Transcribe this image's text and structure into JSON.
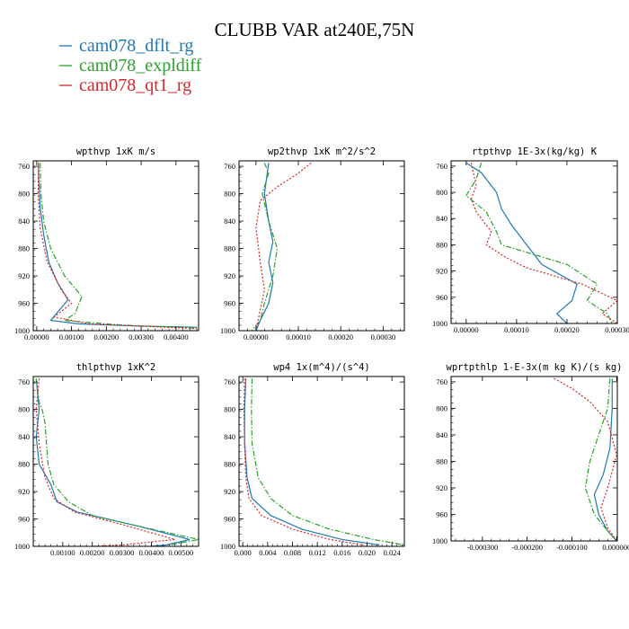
{
  "figure": {
    "title": "CLUBB VAR at240E,75N"
  },
  "colors": {
    "cam078_dflt_rg": "#1f77b4",
    "cam078_expldiff": "#2ca02c",
    "cam078_qt1_rg": "#d62728"
  },
  "legend": [
    {
      "name": "cam078_dflt_rg",
      "dash": "solid"
    },
    {
      "name": "cam078_expldiff",
      "dash": "dashdot"
    },
    {
      "name": "cam078_qt1_rg",
      "dash": "dotted"
    }
  ],
  "chart_data": [
    {
      "type": "line",
      "title": "wpthvp   1xK m/s",
      "xlim": [
        -0.0001,
        0.00465
      ],
      "ylim": [
        1000,
        752
      ],
      "y_inverted": true,
      "xticks": [
        0,
        0.001,
        0.002,
        0.003,
        0.004
      ],
      "xtick_labels": [
        "0.00000",
        "0.00100",
        "0.00200",
        "0.00300",
        "0.00400"
      ],
      "yticks": [
        760,
        800,
        840,
        880,
        920,
        960,
        1000
      ],
      "ytick_labels": [
        "760",
        "800",
        "840",
        "880",
        "920",
        "960",
        "1000"
      ],
      "series": [
        {
          "name": "cam078_dflt_rg",
          "points": [
            [
              5e-05,
              755
            ],
            [
              6e-05,
              780
            ],
            [
              0.0001,
              820
            ],
            [
              0.0002,
              860
            ],
            [
              0.00035,
              900
            ],
            [
              0.0006,
              930
            ],
            [
              0.0009,
              955
            ],
            [
              0.0004,
              985
            ],
            [
              0.0012,
              990
            ],
            [
              0.0028,
              993
            ],
            [
              0.0046,
              995
            ]
          ]
        },
        {
          "name": "cam078_expldiff",
          "points": [
            [
              0.0001,
              755
            ],
            [
              0.00012,
              800
            ],
            [
              0.0002,
              840
            ],
            [
              0.0004,
              880
            ],
            [
              0.0008,
              920
            ],
            [
              0.0013,
              950
            ],
            [
              0.0011,
              975
            ],
            [
              0.0008,
              985
            ],
            [
              0.0025,
              992
            ],
            [
              0.0046,
              996
            ]
          ]
        },
        {
          "name": "cam078_qt1_rg",
          "points": [
            [
              5e-05,
              755
            ],
            [
              4e-05,
              800
            ],
            [
              0.0001,
              850
            ],
            [
              0.0003,
              900
            ],
            [
              0.0007,
              940
            ],
            [
              0.001,
              960
            ],
            [
              0.0005,
              980
            ],
            [
              0.0015,
              990
            ],
            [
              0.0046,
              997
            ]
          ]
        }
      ]
    },
    {
      "type": "line",
      "title": "wp2thvp   1xK m^2/s^2",
      "xlim": [
        -4e-05,
        0.00035
      ],
      "ylim": [
        1000,
        752
      ],
      "y_inverted": true,
      "xticks": [
        0,
        0.0001,
        0.0002,
        0.0003
      ],
      "xtick_labels": [
        "0.00000",
        "0.00010",
        "0.00020",
        "0.00030"
      ],
      "yticks": [
        760,
        800,
        840,
        880,
        920,
        960,
        1000
      ],
      "ytick_labels": [
        "760",
        "800",
        "840",
        "880",
        "920",
        "960",
        "1000"
      ],
      "series": [
        {
          "name": "cam078_dflt_rg",
          "points": [
            [
              3e-05,
              755
            ],
            [
              2e-05,
              800
            ],
            [
              3e-05,
              840
            ],
            [
              4e-05,
              870
            ],
            [
              3e-05,
              900
            ],
            [
              4e-05,
              930
            ],
            [
              3e-05,
              960
            ],
            [
              1e-05,
              985
            ],
            [
              0,
              1000
            ]
          ]
        },
        {
          "name": "cam078_expldiff",
          "points": [
            [
              2e-05,
              755
            ],
            [
              3e-05,
              770
            ],
            [
              1.5e-05,
              800
            ],
            [
              3e-05,
              840
            ],
            [
              5e-05,
              880
            ],
            [
              4e-05,
              920
            ],
            [
              2e-05,
              960
            ],
            [
              1e-05,
              985
            ],
            [
              -1e-05,
              1000
            ]
          ]
        },
        {
          "name": "cam078_qt1_rg",
          "points": [
            [
              0.00013,
              755
            ],
            [
              0.0001,
              770
            ],
            [
              5e-05,
              790
            ],
            [
              1e-05,
              810
            ],
            [
              0,
              850
            ],
            [
              1e-05,
              900
            ],
            [
              2e-05,
              940
            ],
            [
              1e-05,
              970
            ],
            [
              0,
              1000
            ]
          ]
        }
      ]
    },
    {
      "type": "line",
      "title": "rtpthvp   1E-3x(kg/kg) K",
      "xlim": [
        -3e-05,
        0.0003
      ],
      "ylim": [
        1000,
        752
      ],
      "y_inverted": true,
      "xticks": [
        0,
        0.0001,
        0.0002,
        0.0003
      ],
      "xtick_labels": [
        "0.00000",
        "0.00010",
        "0.00020",
        "0.00030"
      ],
      "yticks": [
        760,
        800,
        840,
        880,
        920,
        960,
        1000
      ],
      "ytick_labels": [
        "760",
        "800",
        "840",
        "880",
        "920",
        "960",
        "1000"
      ],
      "series": [
        {
          "name": "cam078_dflt_rg",
          "points": [
            [
              0,
              755
            ],
            [
              3e-05,
              770
            ],
            [
              6e-05,
              800
            ],
            [
              7e-05,
              825
            ],
            [
              9e-05,
              850
            ],
            [
              0.00012,
              880
            ],
            [
              0.00015,
              910
            ],
            [
              0.00022,
              940
            ],
            [
              0.00021,
              965
            ],
            [
              0.00018,
              985
            ],
            [
              0.0002,
              1000
            ]
          ]
        },
        {
          "name": "cam078_expldiff",
          "points": [
            [
              3e-05,
              755
            ],
            [
              2e-05,
              780
            ],
            [
              0,
              805
            ],
            [
              4e-05,
              830
            ],
            [
              6e-05,
              860
            ],
            [
              7e-05,
              880
            ],
            [
              0.0002,
              910
            ],
            [
              0.00026,
              940
            ],
            [
              0.00024,
              965
            ],
            [
              0.00028,
              985
            ],
            [
              0.00029,
              1000
            ]
          ]
        },
        {
          "name": "cam078_qt1_rg",
          "points": [
            [
              1e-05,
              755
            ],
            [
              2e-05,
              790
            ],
            [
              1e-05,
              810
            ],
            [
              2e-05,
              830
            ],
            [
              5e-05,
              860
            ],
            [
              4e-05,
              880
            ],
            [
              8e-05,
              900
            ],
            [
              0.00012,
              915
            ],
            [
              0.00023,
              940
            ],
            [
              0.0003,
              965
            ],
            [
              0.00027,
              985
            ],
            [
              0.0003,
              1000
            ]
          ]
        }
      ]
    },
    {
      "type": "line",
      "title": "thlpthvp   1xK^2",
      "xlim": [
        0,
        0.0056
      ],
      "ylim": [
        1000,
        752
      ],
      "y_inverted": true,
      "xticks": [
        0.001,
        0.002,
        0.003,
        0.004,
        0.005
      ],
      "xtick_labels": [
        "0.00100",
        "0.00200",
        "0.00300",
        "0.00400",
        "0.00500"
      ],
      "yticks": [
        760,
        800,
        840,
        880,
        920,
        960,
        1000
      ],
      "ytick_labels": [
        "760",
        "800",
        "840",
        "880",
        "920",
        "960",
        "1000"
      ],
      "series": [
        {
          "name": "cam078_dflt_rg",
          "points": [
            [
              0.0001,
              755
            ],
            [
              0.0002,
              800
            ],
            [
              0.0001,
              840
            ],
            [
              0.0002,
              880
            ],
            [
              0.0006,
              910
            ],
            [
              0.0008,
              935
            ],
            [
              0.0015,
              950
            ],
            [
              0.0035,
              970
            ],
            [
              0.0053,
              990
            ],
            [
              0.0045,
              998
            ],
            [
              0.004,
              1000
            ]
          ]
        },
        {
          "name": "cam078_expldiff",
          "points": [
            [
              0.0001,
              755
            ],
            [
              0.0002,
              790
            ],
            [
              0.0003,
              800
            ],
            [
              0.0004,
              820
            ],
            [
              0.0005,
              880
            ],
            [
              0.0007,
              910
            ],
            [
              0.0012,
              935
            ],
            [
              0.002,
              955
            ],
            [
              0.0035,
              970
            ],
            [
              0.0056,
              990
            ],
            [
              0.0046,
              998
            ]
          ]
        },
        {
          "name": "cam078_qt1_rg",
          "points": [
            [
              0.0002,
              755
            ],
            [
              0.0001,
              800
            ],
            [
              0.0002,
              850
            ],
            [
              0.0004,
              900
            ],
            [
              0.0007,
              930
            ],
            [
              0.0014,
              950
            ],
            [
              0.003,
              968
            ],
            [
              0.0048,
              990
            ],
            [
              0.003,
              998
            ],
            [
              0.002,
              1000
            ]
          ]
        }
      ]
    },
    {
      "type": "line",
      "title": "wp4   1x(m^4)/(s^4)",
      "xlim": [
        -0.0006,
        0.026
      ],
      "ylim": [
        1000,
        752
      ],
      "y_inverted": true,
      "xticks": [
        0,
        0.004,
        0.008,
        0.012,
        0.016,
        0.02,
        0.024
      ],
      "xtick_labels": [
        "0.000",
        "0.004",
        "0.008",
        "0.012",
        "0.016",
        "0.020",
        "0.024"
      ],
      "yticks": [
        760,
        800,
        840,
        880,
        920,
        960,
        1000
      ],
      "ytick_labels": [
        "760",
        "800",
        "840",
        "880",
        "920",
        "960",
        "1000"
      ],
      "series": [
        {
          "name": "cam078_dflt_rg",
          "points": [
            [
              0.0005,
              755
            ],
            [
              0.0003,
              800
            ],
            [
              0.0003,
              850
            ],
            [
              0.0007,
              900
            ],
            [
              0.0015,
              930
            ],
            [
              0.0045,
              955
            ],
            [
              0.0095,
              975
            ],
            [
              0.016,
              990
            ],
            [
              0.022,
              998
            ]
          ]
        },
        {
          "name": "cam078_expldiff",
          "points": [
            [
              0.0015,
              755
            ],
            [
              0.0014,
              800
            ],
            [
              0.0015,
              850
            ],
            [
              0.0025,
              900
            ],
            [
              0.0045,
              930
            ],
            [
              0.008,
              955
            ],
            [
              0.014,
              975
            ],
            [
              0.021,
              990
            ],
            [
              0.026,
              998
            ]
          ]
        },
        {
          "name": "cam078_qt1_rg",
          "points": [
            [
              0.0003,
              755
            ],
            [
              0.0002,
              800
            ],
            [
              0.0003,
              850
            ],
            [
              0.0005,
              900
            ],
            [
              0.001,
              930
            ],
            [
              0.003,
              955
            ],
            [
              0.008,
              975
            ],
            [
              0.014,
              990
            ],
            [
              0.0195,
              998
            ]
          ]
        }
      ]
    },
    {
      "type": "line",
      "title": "wprtpthlp   1-E-3x(m kg K)/(s kg)",
      "xlim": [
        -0.00037,
        1.5e-06
      ],
      "ylim": [
        1000,
        752
      ],
      "y_inverted": true,
      "xticks": [
        -0.0003,
        -0.0002,
        -0.0001,
        0
      ],
      "xtick_labels": [
        "-0.000300",
        "-0.000200",
        "-0.000100",
        "0.000000"
      ],
      "yticks": [
        760,
        800,
        840,
        880,
        920,
        960,
        1000
      ],
      "ytick_labels": [
        "760",
        "800",
        "840",
        "880",
        "920",
        "960",
        "1000"
      ],
      "series": [
        {
          "name": "cam078_dflt_rg",
          "points": [
            [
              -1e-05,
              755
            ],
            [
              -1e-05,
              800
            ],
            [
              -1.5e-05,
              860
            ],
            [
              -3e-05,
              900
            ],
            [
              -5e-05,
              930
            ],
            [
              -4e-05,
              960
            ],
            [
              -2e-05,
              985
            ],
            [
              0,
              1000
            ]
          ]
        },
        {
          "name": "cam078_expldiff",
          "points": [
            [
              -1.5e-05,
              755
            ],
            [
              -2e-05,
              800
            ],
            [
              -4e-05,
              840
            ],
            [
              -6e-05,
              880
            ],
            [
              -7e-05,
              920
            ],
            [
              -5e-05,
              960
            ],
            [
              -2e-05,
              985
            ],
            [
              0,
              1000
            ]
          ]
        },
        {
          "name": "cam078_qt1_rg",
          "points": [
            [
              -0.00014,
              755
            ],
            [
              -0.0001,
              770
            ],
            [
              -6e-05,
              790
            ],
            [
              -2e-05,
              820
            ],
            [
              0,
              870
            ],
            [
              -2e-05,
              920
            ],
            [
              -3.5e-05,
              950
            ],
            [
              -2e-05,
              980
            ],
            [
              0,
              1000
            ]
          ]
        }
      ]
    }
  ]
}
